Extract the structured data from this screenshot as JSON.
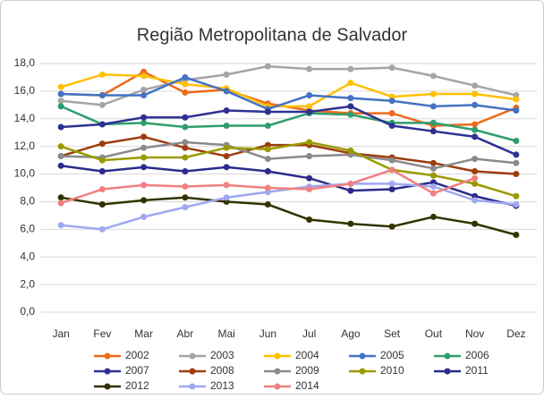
{
  "chart_data": {
    "type": "line",
    "title": "Região Metropolitana de Salvador",
    "categories": [
      "Jan",
      "Fev",
      "Mar",
      "Abr",
      "Mai",
      "Jun",
      "Jul",
      "Ago",
      "Set",
      "Out",
      "Nov",
      "Dez"
    ],
    "ylim": [
      0,
      18
    ],
    "yticks": [
      {
        "value": 0,
        "label": "0,0"
      },
      {
        "value": 2,
        "label": "2,0"
      },
      {
        "value": 4,
        "label": "4,0"
      },
      {
        "value": 6,
        "label": "6,0"
      },
      {
        "value": 8,
        "label": "8,0"
      },
      {
        "value": 10,
        "label": "10,0"
      },
      {
        "value": 12,
        "label": "12,0"
      },
      {
        "value": 14,
        "label": "14,0"
      },
      {
        "value": 16,
        "label": "16,0"
      },
      {
        "value": 18,
        "label": "18,0"
      }
    ],
    "grid": true,
    "series": [
      {
        "name": "2002",
        "color": "#ee6a1c",
        "values": [
          15.8,
          15.7,
          17.4,
          15.9,
          16.1,
          15.1,
          14.6,
          14.4,
          14.4,
          13.5,
          13.6,
          14.8
        ]
      },
      {
        "name": "2003",
        "color": "#a5a5a5",
        "values": [
          15.3,
          15.0,
          16.1,
          16.8,
          17.2,
          17.8,
          17.6,
          17.6,
          17.7,
          17.1,
          16.4,
          15.7
        ]
      },
      {
        "name": "2004",
        "color": "#ffc000",
        "values": [
          16.3,
          17.2,
          17.1,
          16.5,
          16.2,
          14.9,
          14.9,
          16.6,
          15.6,
          15.8,
          15.8,
          15.4
        ]
      },
      {
        "name": "2005",
        "color": "#4472c4",
        "values": [
          15.8,
          15.7,
          15.7,
          17.0,
          16.0,
          14.7,
          15.7,
          15.5,
          15.3,
          14.9,
          15.0,
          14.6
        ]
      },
      {
        "name": "2006",
        "color": "#2e9e6e",
        "values": [
          14.9,
          13.6,
          13.7,
          13.4,
          13.5,
          13.5,
          14.4,
          14.3,
          13.7,
          13.7,
          13.2,
          12.4
        ]
      },
      {
        "name": "2007",
        "color": "#2e3192",
        "values": [
          13.4,
          13.6,
          14.1,
          14.1,
          14.6,
          14.5,
          14.5,
          14.9,
          13.5,
          13.1,
          12.7,
          11.4
        ]
      },
      {
        "name": "2008",
        "color": "#9c3d0e",
        "values": [
          11.3,
          12.2,
          12.7,
          11.9,
          11.3,
          12.1,
          12.1,
          11.5,
          11.2,
          10.8,
          10.2,
          10.0
        ]
      },
      {
        "name": "2009",
        "color": "#8a8a8a",
        "values": [
          11.3,
          11.2,
          11.9,
          12.3,
          12.1,
          11.1,
          11.3,
          11.4,
          11.0,
          10.4,
          11.1,
          10.8
        ]
      },
      {
        "name": "2010",
        "color": "#9a9a00",
        "values": [
          12.0,
          11.0,
          11.2,
          11.2,
          11.9,
          11.8,
          12.3,
          11.7,
          10.3,
          9.9,
          9.3,
          8.4
        ]
      },
      {
        "name": "2011",
        "color": "#2b2b8c",
        "values": [
          10.6,
          10.2,
          10.5,
          10.2,
          10.5,
          10.2,
          9.7,
          8.8,
          8.9,
          9.4,
          8.4,
          7.7
        ]
      },
      {
        "name": "2012",
        "color": "#333300",
        "values": [
          8.3,
          7.8,
          8.1,
          8.3,
          8.0,
          7.8,
          6.7,
          6.4,
          6.2,
          6.9,
          6.4,
          5.6
        ]
      },
      {
        "name": "2013",
        "color": "#9fa8f0",
        "values": [
          6.3,
          6.0,
          6.9,
          7.6,
          8.3,
          8.7,
          9.1,
          9.3,
          9.3,
          9.1,
          8.1,
          7.8
        ]
      },
      {
        "name": "2014",
        "color": "#f08080",
        "values": [
          7.9,
          8.9,
          9.2,
          9.1,
          9.2,
          9.0,
          8.9,
          9.3,
          10.3,
          8.6,
          9.7,
          null
        ]
      }
    ]
  }
}
